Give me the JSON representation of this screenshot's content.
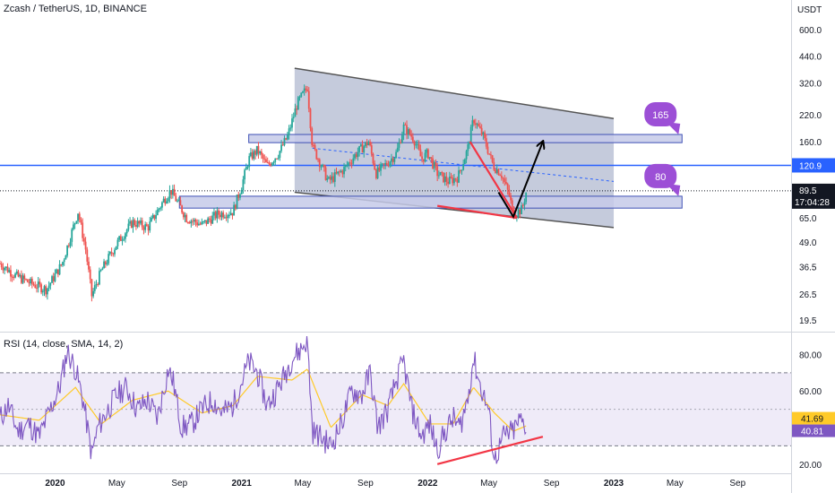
{
  "legend": {
    "main": "Zcash / TetherUS, 1D, BINANCE",
    "rsi": "RSI (14, close, SMA, 14, 2)"
  },
  "colors": {
    "background": "#ffffff",
    "price_up": "#26a69a",
    "price_down": "#ef5350",
    "rsi_line": "#7e57c2",
    "rsi_ma": "#ffca28",
    "horizontal_line": "#2962ff",
    "channel_fill": "#9fa8c5",
    "zone_fill": "#c5cae9",
    "trend_red": "#f23645",
    "arrow_black": "#000000",
    "bubble": "#9c4fd6",
    "axis_text": "#131722"
  },
  "chart_data": [
    {
      "type": "candlestick",
      "title": "Zcash / TetherUS, 1D, BINANCE",
      "ylabel": "USDT",
      "yscale": "log",
      "ylim": [
        17,
        850
      ],
      "y_ticks": [
        "600.0",
        "440.0",
        "320.0",
        "220.0",
        "160.0",
        "120.9",
        "89.5",
        "65.0",
        "49.0",
        "36.5",
        "26.5",
        "19.5"
      ],
      "x_ticks": [
        "2020",
        "May",
        "Sep",
        "2021",
        "May",
        "Sep",
        "2022",
        "May",
        "Sep",
        "2023",
        "May",
        "Sep"
      ],
      "x_tick_dates": [
        "2020-01-01",
        "2020-05-01",
        "2020-09-01",
        "2021-01-01",
        "2021-05-01",
        "2021-09-01",
        "2022-01-01",
        "2022-05-01",
        "2022-09-01",
        "2023-01-01",
        "2023-05-01",
        "2023-09-01"
      ],
      "x_range": [
        "2019-09-15",
        "2023-12-15"
      ],
      "price_series": {
        "name": "Zcash / TetherUS",
        "dates": [
          "2019-09-15",
          "2019-10-15",
          "2019-11-15",
          "2019-12-15",
          "2020-01-15",
          "2020-02-15",
          "2020-03-01",
          "2020-03-13",
          "2020-04-01",
          "2020-05-01",
          "2020-06-01",
          "2020-07-01",
          "2020-08-01",
          "2020-08-15",
          "2020-09-15",
          "2020-10-15",
          "2020-11-15",
          "2020-12-15",
          "2021-01-01",
          "2021-01-15",
          "2021-02-01",
          "2021-02-20",
          "2021-03-15",
          "2021-04-01",
          "2021-04-20",
          "2021-05-10",
          "2021-05-20",
          "2021-06-01",
          "2021-06-20",
          "2021-07-01",
          "2021-07-20",
          "2021-08-15",
          "2021-09-07",
          "2021-09-22",
          "2021-10-15",
          "2021-11-01",
          "2021-11-15",
          "2021-12-05",
          "2021-12-20",
          "2022-01-01",
          "2022-01-20",
          "2022-02-10",
          "2022-03-01",
          "2022-03-20",
          "2022-04-01",
          "2022-04-20",
          "2022-05-10",
          "2022-05-25",
          "2022-06-10",
          "2022-06-18",
          "2022-07-05",
          "2022-07-14"
        ],
        "close": [
          38,
          33,
          30,
          28,
          38,
          70,
          45,
          26,
          35,
          48,
          62,
          58,
          80,
          90,
          65,
          60,
          68,
          70,
          95,
          130,
          145,
          120,
          140,
          170,
          250,
          305,
          150,
          130,
          100,
          105,
          115,
          140,
          160,
          110,
          125,
          140,
          190,
          165,
          130,
          140,
          110,
          100,
          105,
          145,
          210,
          170,
          120,
          110,
          85,
          68,
          72,
          90
        ]
      },
      "current_price": 89.5,
      "countdown": "17:04:28",
      "horizontal_line_price": 120.9,
      "horizontal_line_label": "120.9",
      "dotted_price_line": 89.5,
      "drawings": [
        {
          "kind": "channel",
          "line1": [
            [
              "2021-04-15",
              380
            ],
            [
              "2023-01-01",
              210
            ]
          ],
          "line2": [
            [
              "2021-04-15",
              88
            ],
            [
              "2023-01-01",
              58
            ]
          ]
        },
        {
          "kind": "zone",
          "label": "165",
          "from": "2021-01-15",
          "to": "2023-05-15",
          "low": 158,
          "high": 174
        },
        {
          "kind": "zone",
          "label": "80",
          "from": "2020-09-01",
          "to": "2023-05-15",
          "low": 73,
          "high": 84
        },
        {
          "kind": "dashed_trend",
          "from": [
            "2021-05-20",
            148
          ],
          "to": [
            "2023-01-01",
            100
          ]
        },
        {
          "kind": "red_trend",
          "from": [
            "2022-01-20",
            75
          ],
          "to": [
            "2022-06-25",
            65
          ]
        },
        {
          "kind": "red_trend",
          "from": [
            "2022-03-25",
            160
          ],
          "to": [
            "2022-06-25",
            65
          ]
        },
        {
          "kind": "arrow",
          "path": [
            [
              "2022-05-20",
              88
            ],
            [
              "2022-06-18",
              66
            ],
            [
              "2022-08-15",
              160
            ]
          ]
        }
      ],
      "callouts": [
        {
          "text": "165",
          "anchor_price": 165
        },
        {
          "text": "80",
          "anchor_price": 80
        }
      ]
    },
    {
      "type": "line",
      "title": "RSI (14, close, SMA, 14, 2)",
      "ylim": [
        15,
        92
      ],
      "y_ticks": [
        "80.00",
        "60.00",
        "40.00",
        "20.00"
      ],
      "bands": {
        "upper": 70,
        "middle": 50,
        "lower": 30
      },
      "series": [
        {
          "name": "RSI",
          "dates": [
            "2019-09-15",
            "2019-10-01",
            "2019-10-20",
            "2019-11-10",
            "2019-12-01",
            "2019-12-20",
            "2020-01-10",
            "2020-01-25",
            "2020-02-10",
            "2020-02-25",
            "2020-03-13",
            "2020-03-25",
            "2020-04-10",
            "2020-05-01",
            "2020-05-20",
            "2020-06-10",
            "2020-07-01",
            "2020-07-20",
            "2020-08-10",
            "2020-08-20",
            "2020-09-05",
            "2020-09-25",
            "2020-10-15",
            "2020-11-05",
            "2020-11-25",
            "2020-12-15",
            "2021-01-01",
            "2021-01-15",
            "2021-02-01",
            "2021-02-20",
            "2021-03-10",
            "2021-03-25",
            "2021-04-10",
            "2021-04-25",
            "2021-05-10",
            "2021-05-20",
            "2021-06-05",
            "2021-06-25",
            "2021-07-15",
            "2021-08-05",
            "2021-08-25",
            "2021-09-10",
            "2021-09-25",
            "2021-10-15",
            "2021-11-01",
            "2021-11-15",
            "2021-12-01",
            "2021-12-20",
            "2022-01-05",
            "2022-01-20",
            "2022-02-05",
            "2022-02-20",
            "2022-03-05",
            "2022-03-20",
            "2022-04-01",
            "2022-04-15",
            "2022-04-30",
            "2022-05-12",
            "2022-05-30",
            "2022-06-18",
            "2022-07-01",
            "2022-07-14"
          ],
          "values": [
            45,
            52,
            38,
            42,
            35,
            48,
            62,
            82,
            72,
            55,
            25,
            40,
            48,
            58,
            62,
            50,
            55,
            45,
            72,
            65,
            40,
            42,
            50,
            55,
            48,
            52,
            65,
            76,
            70,
            52,
            60,
            68,
            78,
            82,
            88,
            38,
            35,
            30,
            42,
            60,
            58,
            70,
            40,
            50,
            66,
            76,
            50,
            35,
            42,
            28,
            38,
            45,
            40,
            55,
            78,
            62,
            50,
            22,
            35,
            38,
            44,
            41
          ]
        },
        {
          "name": "RSI-based MA",
          "dates": [
            "2019-09-15",
            "2019-12-01",
            "2020-02-10",
            "2020-04-01",
            "2020-06-01",
            "2020-08-10",
            "2020-10-15",
            "2020-12-15",
            "2021-02-01",
            "2021-04-10",
            "2021-05-10",
            "2021-06-25",
            "2021-08-25",
            "2021-10-15",
            "2021-11-15",
            "2022-01-05",
            "2022-02-20",
            "2022-04-01",
            "2022-05-12",
            "2022-06-18",
            "2022-07-14"
          ],
          "values": [
            47,
            44,
            62,
            42,
            55,
            60,
            48,
            52,
            68,
            66,
            72,
            40,
            58,
            52,
            64,
            42,
            42,
            62,
            48,
            38,
            41
          ]
        }
      ],
      "rsi_value": "41.69",
      "ma_value": "40.81",
      "trendline": {
        "from": [
          "2022-01-20",
          20
        ],
        "to": [
          "2022-08-15",
          35
        ]
      }
    }
  ]
}
